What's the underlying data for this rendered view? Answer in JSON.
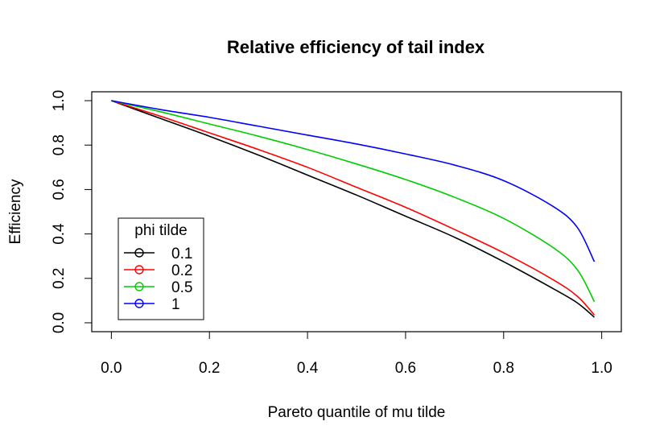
{
  "chart_data": {
    "type": "line",
    "title": "Relative efficiency of tail index",
    "xlabel": "Pareto quantile of mu tilde",
    "ylabel": "Efficiency",
    "xlim": [
      -0.04,
      1.04
    ],
    "ylim": [
      -0.04,
      1.04
    ],
    "xticks": [
      0.0,
      0.2,
      0.4,
      0.6,
      0.8,
      1.0
    ],
    "xtick_labels": [
      "0.0",
      "0.2",
      "0.4",
      "0.6",
      "0.8",
      "1.0"
    ],
    "yticks": [
      0.0,
      0.2,
      0.4,
      0.6,
      0.8,
      1.0
    ],
    "ytick_labels": [
      "0.0",
      "0.2",
      "0.4",
      "0.6",
      "0.8",
      "1.0"
    ],
    "grid": false,
    "legend": {
      "title": "phi tilde",
      "placement": "bottom-left",
      "entries": [
        "0.1",
        "0.2",
        "0.5",
        "1"
      ]
    },
    "series": [
      {
        "name": "0.1",
        "color": "#000000",
        "x": [
          0.0,
          0.1,
          0.2,
          0.3,
          0.4,
          0.5,
          0.6,
          0.7,
          0.8,
          0.9,
          0.95,
          0.985
        ],
        "y": [
          1.0,
          0.92,
          0.84,
          0.755,
          0.665,
          0.575,
          0.48,
          0.385,
          0.275,
          0.155,
          0.09,
          0.025
        ]
      },
      {
        "name": "0.2",
        "color": "#ff0000",
        "x": [
          0.0,
          0.1,
          0.2,
          0.3,
          0.4,
          0.5,
          0.6,
          0.7,
          0.8,
          0.9,
          0.95,
          0.985
        ],
        "y": [
          1.0,
          0.93,
          0.855,
          0.78,
          0.7,
          0.61,
          0.52,
          0.42,
          0.315,
          0.195,
          0.12,
          0.035
        ]
      },
      {
        "name": "0.5",
        "color": "#00cd00",
        "x": [
          0.0,
          0.1,
          0.2,
          0.3,
          0.4,
          0.5,
          0.6,
          0.7,
          0.8,
          0.9,
          0.95,
          0.985
        ],
        "y": [
          1.0,
          0.95,
          0.895,
          0.84,
          0.78,
          0.715,
          0.645,
          0.565,
          0.47,
          0.34,
          0.24,
          0.095
        ]
      },
      {
        "name": "1",
        "color": "#0000ff",
        "x": [
          0.0,
          0.1,
          0.2,
          0.3,
          0.4,
          0.5,
          0.6,
          0.7,
          0.8,
          0.9,
          0.95,
          0.985
        ],
        "y": [
          1.0,
          0.96,
          0.925,
          0.885,
          0.845,
          0.805,
          0.76,
          0.71,
          0.64,
          0.525,
          0.43,
          0.275
        ]
      }
    ]
  }
}
